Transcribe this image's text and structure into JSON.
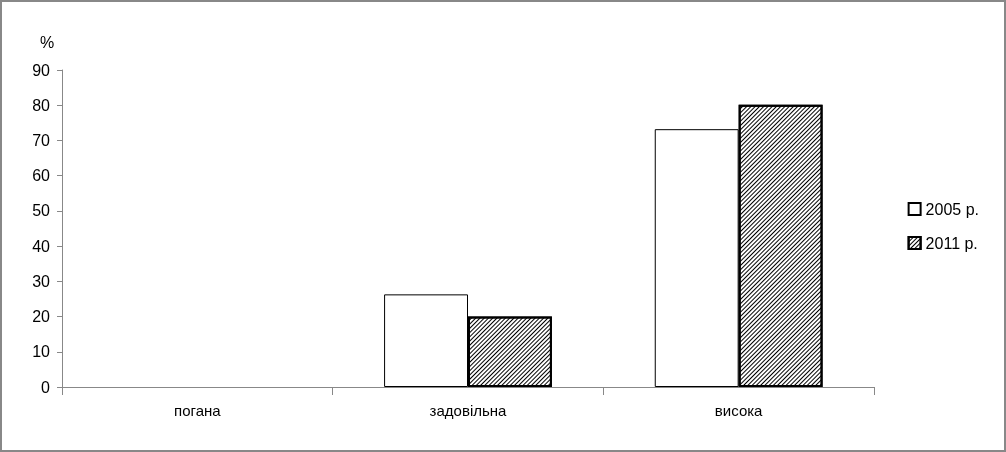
{
  "chart_data": {
    "type": "bar",
    "ylabel": "%",
    "categories": [
      "погана",
      "задовільна",
      "висока"
    ],
    "series": [
      {
        "name": "2005 р.",
        "color": "#ffffff",
        "values": [
          null,
          26.3,
          73.2
        ]
      },
      {
        "name": "2011 р.",
        "color": "#000000",
        "values": [
          null,
          20.0,
          80.1
        ]
      }
    ],
    "ylim": [
      0,
      90
    ],
    "yticks": [
      0,
      10,
      20,
      30,
      40,
      50,
      60,
      70,
      80,
      90
    ],
    "grid": false,
    "legend": "right"
  }
}
